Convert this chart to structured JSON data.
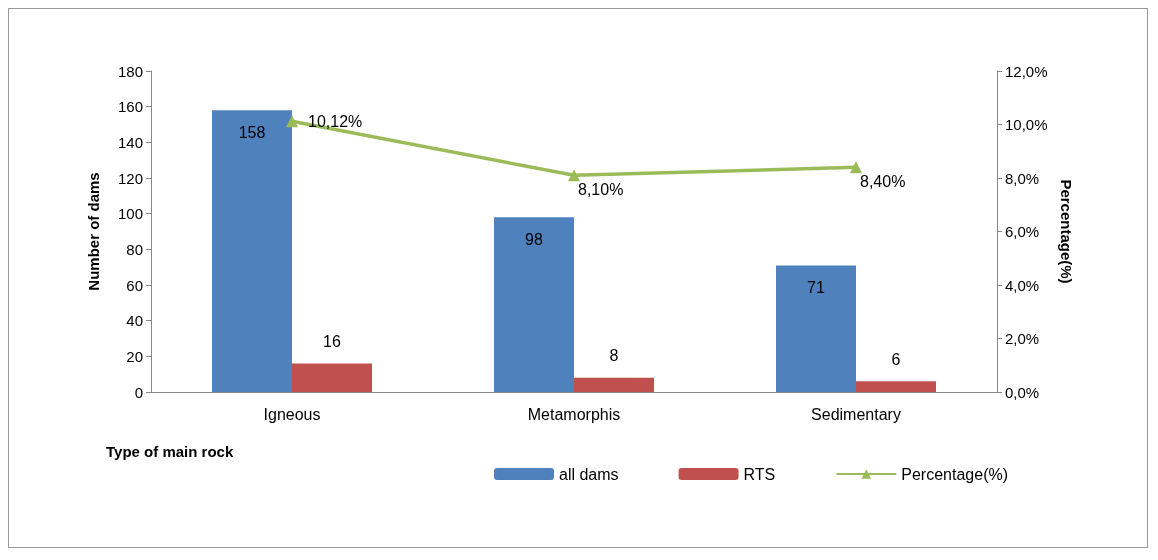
{
  "chart_data": {
    "type": "bar",
    "xlabel": "Type of main rock",
    "ylabel": "Number of dams",
    "y2label": "Percentage(%)",
    "categories": [
      "Igneous",
      "Metamorphis",
      "Sedimentary"
    ],
    "series": [
      {
        "name": "all dams",
        "color": "#4f81bd",
        "values": [
          158,
          98,
          71
        ]
      },
      {
        "name": "RTS",
        "color": "#c0504d",
        "values": [
          16,
          8,
          6
        ]
      },
      {
        "name": "Percentage(%)",
        "type": "line",
        "axis": "y2",
        "color": "#9bbb59",
        "marker": "triangle",
        "line_style": "solid",
        "values": [
          10.12,
          8.1,
          8.4
        ],
        "value_labels": [
          "10,12%",
          "8,10%",
          "8,40%"
        ]
      }
    ],
    "data_labels": true,
    "ylim": [
      0,
      180
    ],
    "yticks": [
      0,
      20,
      40,
      60,
      80,
      100,
      120,
      140,
      160,
      180
    ],
    "y2lim": [
      0,
      12
    ],
    "y2ticks": [
      {
        "value": 0,
        "label": "0,0%"
      },
      {
        "value": 2,
        "label": "2,0%"
      },
      {
        "value": 4,
        "label": "4,0%"
      },
      {
        "value": 6,
        "label": "6,0%"
      },
      {
        "value": 8,
        "label": "8,0%"
      },
      {
        "value": 10,
        "label": "10,0%"
      },
      {
        "value": 12,
        "label": "12,0%"
      }
    ],
    "grid": false,
    "legend": "bottom"
  }
}
